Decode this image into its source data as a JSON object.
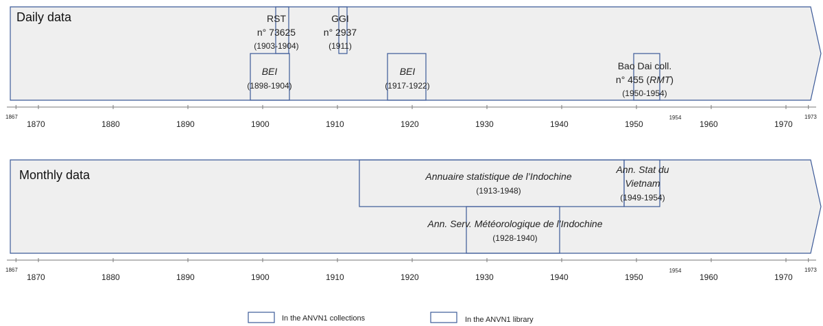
{
  "colors": {
    "band_fill": "#efefef",
    "band_stroke": "#3b5998",
    "box_stroke": "#3b5998",
    "axis": "#777777"
  },
  "axis": {
    "start_label": "1867",
    "end_label": "1973",
    "ticks": [
      "1870",
      "1880",
      "1890",
      "1900",
      "1910",
      "1920",
      "1930",
      "1940",
      "1950",
      "1960",
      "1970"
    ],
    "marker_1954": "1954"
  },
  "daily": {
    "title": "Daily data",
    "items": [
      {
        "name": "BEI",
        "years": "(1898-1904)",
        "start": 1898.7,
        "end": 1904.0
      },
      {
        "name_line1": "RST",
        "name_line2": "n° 73625",
        "years": "(1903-1904)",
        "start": 1902.3,
        "end": 1904.0
      },
      {
        "name_line1": "GGI",
        "name_line2": "n° 2937",
        "years": "(1911)",
        "start": 1910.5,
        "end": 1911.5
      },
      {
        "name": "BEI",
        "years": "(1917-1922)",
        "start": 1916.8,
        "end": 1922.0
      },
      {
        "name_line1": "Bao Dai coll.",
        "name_line2_pre": "n° 455 (",
        "name_line2_it": "RMT",
        "name_line2_post": ")",
        "years": "(1950-1954)",
        "start": 1950.0,
        "end": 1953.9
      }
    ]
  },
  "monthly": {
    "title": "Monthly data",
    "items": [
      {
        "name": "Annuaire statistique de l’Indochine",
        "years": "(1913-1948)",
        "start": 1913.3,
        "end": 1948.8
      },
      {
        "name_line1": "Ann. Stat du",
        "name_line2": "Vietnam",
        "years": "(1949-1954)",
        "start": 1948.8,
        "end": 1953.9
      },
      {
        "name": "Ann. Serv. Météorologique de l’Indochine",
        "years": "(1928-1940)",
        "start": 1927.4,
        "end": 1939.9
      }
    ]
  },
  "legend": {
    "collections": "In the ANVN1 collections",
    "library": "In the ANVN1 library"
  }
}
